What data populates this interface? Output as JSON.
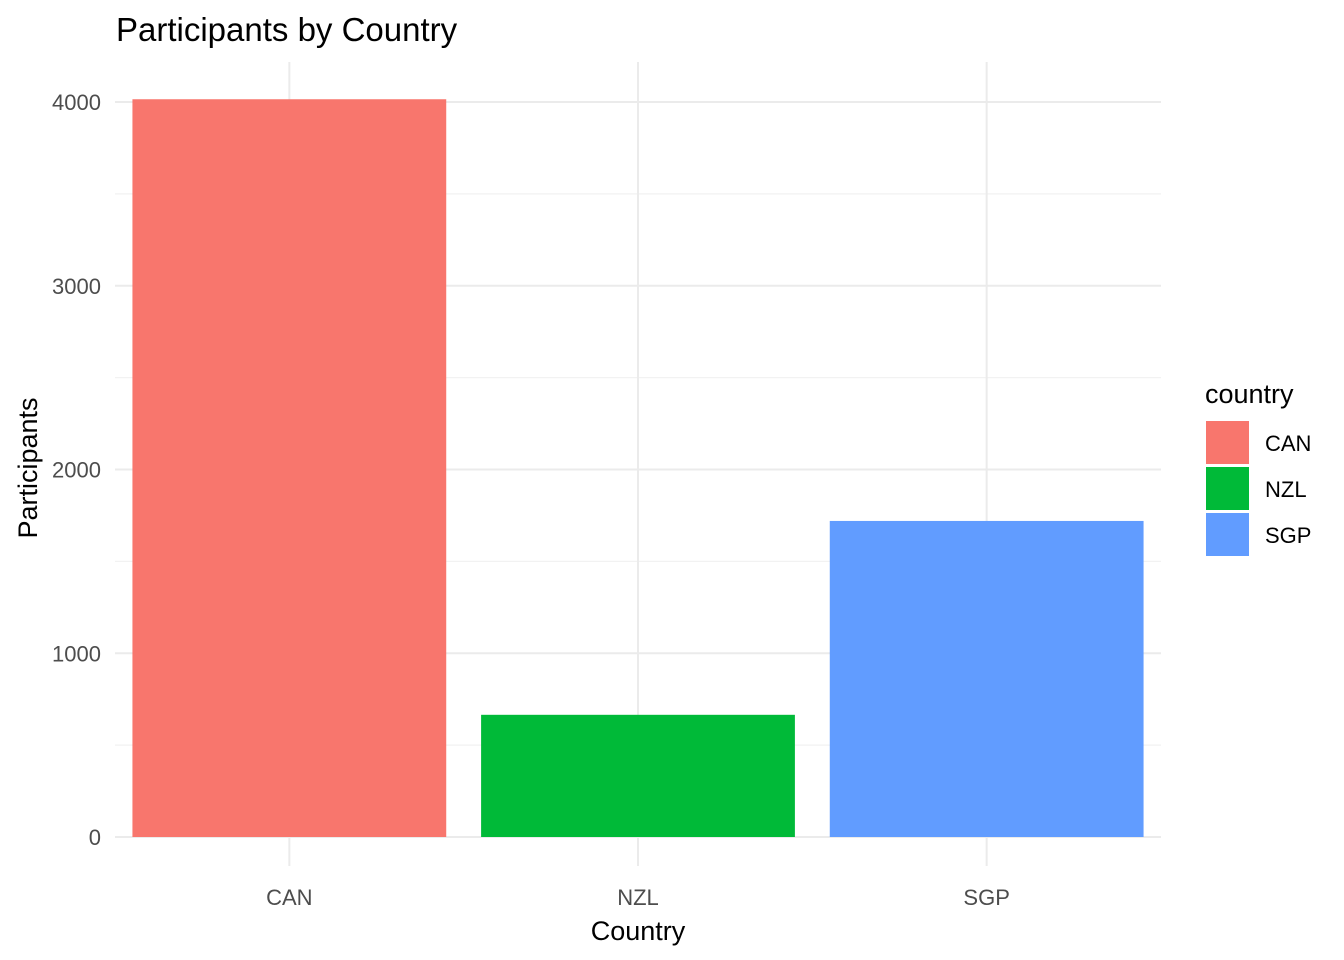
{
  "chart_data": {
    "type": "bar",
    "title": "Participants by Country",
    "xlabel": "Country",
    "ylabel": "Participants",
    "categories": [
      "CAN",
      "NZL",
      "SGP"
    ],
    "values": [
      4015,
      665,
      1720
    ],
    "colors": [
      "#F8766D",
      "#00BA38",
      "#619CFF"
    ],
    "ylim": [
      0,
      4200
    ],
    "yticks": [
      0,
      1000,
      2000,
      3000,
      4000
    ],
    "grid": true,
    "legend": {
      "title": "country",
      "placement": "right",
      "entries": [
        "CAN",
        "NZL",
        "SGP"
      ]
    }
  }
}
